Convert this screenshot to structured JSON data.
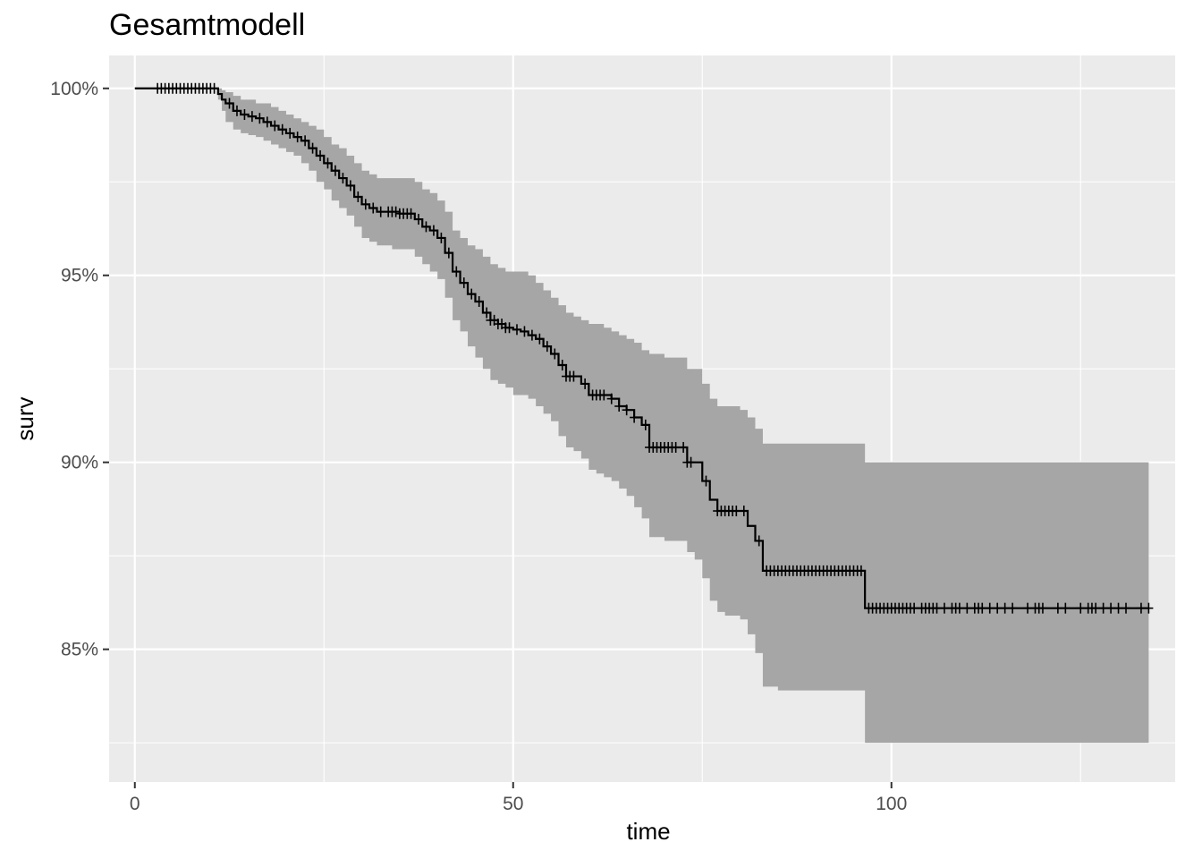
{
  "chart_data": {
    "type": "line",
    "title": "Gesamtmodell",
    "xlabel": "time",
    "ylabel": "surv",
    "xlim": [
      -3.4,
      137.5
    ],
    "ylim": [
      0.8145,
      1.0088
    ],
    "x_ticks": [
      0,
      50,
      100
    ],
    "x_tick_labels": [
      "0",
      "50",
      "100"
    ],
    "y_ticks": [
      0.85,
      0.9,
      0.95,
      1.0
    ],
    "y_tick_labels": [
      "85%",
      "90%",
      "95%",
      "100%"
    ],
    "grid": true,
    "legend": "none",
    "colors": {
      "panel": "#ebebeb",
      "grid": "#ffffff",
      "ribbon": "#a6a6a6",
      "line": "#000000"
    },
    "series": [
      {
        "x": [
          0,
          11,
          11.5,
          12,
          13,
          14,
          15,
          16,
          17,
          18,
          19,
          20,
          21,
          22,
          23,
          24,
          25,
          26,
          27,
          28,
          29,
          30,
          31,
          32,
          33,
          34,
          35,
          36,
          37,
          38,
          39,
          40,
          41,
          42,
          43,
          44,
          45,
          46,
          47,
          48,
          49,
          50,
          51,
          52,
          53,
          54,
          55,
          56,
          57,
          58,
          59,
          60,
          61,
          62,
          63,
          64,
          65,
          66,
          67,
          68,
          70,
          72,
          73,
          74,
          75,
          76,
          77,
          78,
          80,
          81,
          82,
          83,
          85,
          90,
          95,
          96.5,
          100,
          110,
          120,
          130,
          134
        ],
        "surv": [
          1.0,
          0.9985,
          0.997,
          0.996,
          0.994,
          0.993,
          0.9925,
          0.992,
          0.991,
          0.99,
          0.989,
          0.988,
          0.987,
          0.986,
          0.984,
          0.982,
          0.98,
          0.978,
          0.976,
          0.974,
          0.971,
          0.969,
          0.968,
          0.967,
          0.967,
          0.967,
          0.9665,
          0.9665,
          0.965,
          0.963,
          0.962,
          0.96,
          0.956,
          0.951,
          0.948,
          0.945,
          0.943,
          0.94,
          0.938,
          0.937,
          0.936,
          0.9355,
          0.935,
          0.934,
          0.933,
          0.931,
          0.929,
          0.926,
          0.923,
          0.923,
          0.921,
          0.918,
          0.918,
          0.918,
          0.917,
          0.915,
          0.914,
          0.912,
          0.91,
          0.904,
          0.904,
          0.904,
          0.9,
          0.9,
          0.895,
          0.89,
          0.887,
          0.887,
          0.887,
          0.883,
          0.879,
          0.871,
          0.871,
          0.871,
          0.871,
          0.861,
          0.861,
          0.861,
          0.861,
          0.861,
          0.861
        ],
        "lower": [
          1.0,
          0.997,
          0.994,
          0.991,
          0.989,
          0.988,
          0.9875,
          0.987,
          0.986,
          0.985,
          0.984,
          0.983,
          0.982,
          0.98,
          0.978,
          0.975,
          0.973,
          0.97,
          0.968,
          0.966,
          0.963,
          0.96,
          0.959,
          0.958,
          0.958,
          0.957,
          0.957,
          0.957,
          0.955,
          0.953,
          0.951,
          0.949,
          0.944,
          0.938,
          0.935,
          0.931,
          0.928,
          0.925,
          0.922,
          0.921,
          0.92,
          0.918,
          0.918,
          0.917,
          0.915,
          0.913,
          0.911,
          0.907,
          0.904,
          0.903,
          0.901,
          0.898,
          0.897,
          0.896,
          0.895,
          0.893,
          0.891,
          0.888,
          0.885,
          0.88,
          0.879,
          0.879,
          0.876,
          0.874,
          0.869,
          0.863,
          0.86,
          0.859,
          0.858,
          0.854,
          0.849,
          0.84,
          0.839,
          0.839,
          0.839,
          0.825,
          0.825,
          0.825,
          0.825,
          0.825,
          0.825
        ],
        "upper": [
          1.0,
          1.0,
          0.9995,
          0.999,
          0.998,
          0.997,
          0.997,
          0.996,
          0.996,
          0.995,
          0.994,
          0.993,
          0.992,
          0.991,
          0.99,
          0.989,
          0.987,
          0.985,
          0.984,
          0.982,
          0.98,
          0.978,
          0.977,
          0.976,
          0.976,
          0.976,
          0.976,
          0.976,
          0.975,
          0.973,
          0.972,
          0.97,
          0.967,
          0.962,
          0.96,
          0.958,
          0.957,
          0.955,
          0.953,
          0.952,
          0.951,
          0.951,
          0.951,
          0.95,
          0.948,
          0.946,
          0.944,
          0.942,
          0.94,
          0.939,
          0.938,
          0.937,
          0.937,
          0.936,
          0.935,
          0.934,
          0.933,
          0.932,
          0.93,
          0.929,
          0.928,
          0.928,
          0.925,
          0.925,
          0.921,
          0.917,
          0.915,
          0.915,
          0.914,
          0.912,
          0.909,
          0.905,
          0.905,
          0.905,
          0.905,
          0.9,
          0.9,
          0.9,
          0.9,
          0.9,
          0.9
        ]
      }
    ],
    "censor_times": [
      3,
      3.5,
      4,
      4.5,
      5,
      5.5,
      6,
      6.5,
      7,
      7.5,
      8,
      8.5,
      9,
      9.5,
      10,
      10.5,
      12.5,
      13.5,
      14.5,
      15.5,
      16.5,
      17.5,
      18.5,
      19.5,
      20.5,
      21.5,
      22.5,
      23.5,
      24.5,
      25.5,
      26.5,
      27.5,
      28.5,
      29.5,
      30.5,
      31.5,
      32.5,
      33.5,
      34,
      34.5,
      35,
      35.5,
      36,
      36.5,
      37.5,
      38.5,
      39.5,
      40.5,
      41.5,
      42.5,
      43.5,
      44.5,
      45.5,
      46.5,
      47,
      47.5,
      48,
      48.5,
      49,
      49.5,
      50.5,
      51.5,
      52.5,
      53.5,
      54.5,
      55.5,
      56.5,
      57,
      57.5,
      58,
      59.5,
      60.5,
      61,
      61.5,
      62,
      63,
      64,
      65,
      66,
      67.5,
      68,
      68.5,
      69,
      69.5,
      70,
      70.5,
      71,
      71.5,
      72.5,
      73,
      73.5,
      75.5,
      77,
      77.5,
      78,
      78.5,
      79,
      79.5,
      80.5,
      82.5,
      83.5,
      84,
      84.5,
      85,
      85.5,
      86,
      86.5,
      87,
      87.5,
      88,
      88.5,
      89,
      89.5,
      90,
      90.5,
      91,
      91.5,
      92,
      92.5,
      93,
      93.5,
      94,
      94.5,
      95,
      95.5,
      96,
      97,
      97.5,
      98,
      98.5,
      99,
      99.5,
      100,
      100.5,
      101,
      101.5,
      102,
      102.5,
      103,
      104,
      104.5,
      105,
      105.5,
      106,
      107,
      108,
      108.5,
      109,
      110,
      111,
      111.5,
      112,
      113,
      114,
      115,
      116,
      118,
      119,
      119.5,
      120,
      122,
      123,
      125,
      126,
      126.5,
      127,
      128,
      129,
      130,
      131,
      133,
      134
    ]
  }
}
